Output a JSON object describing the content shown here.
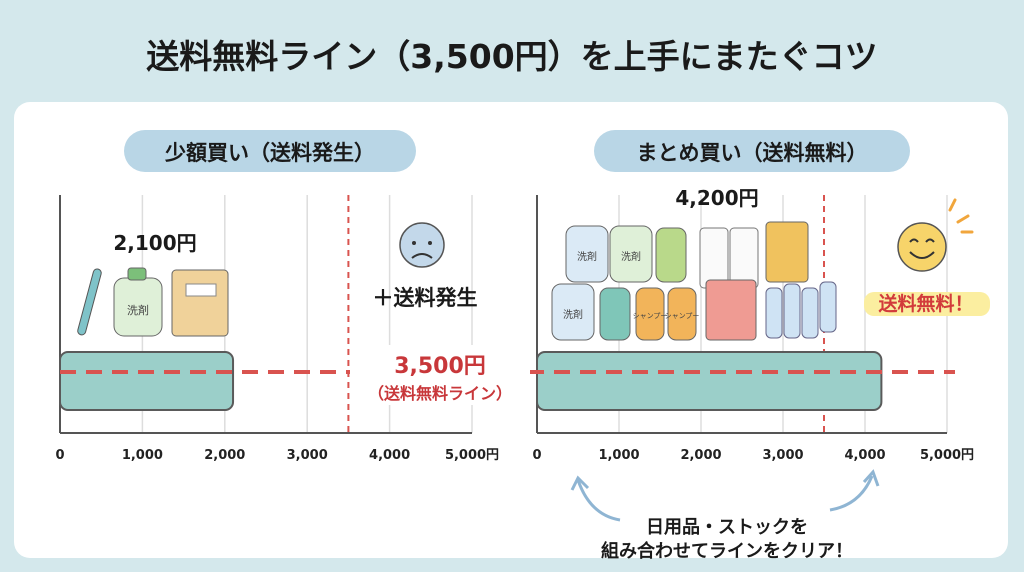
{
  "title": "送料無料ライン（3,500円）を上手にまたぐコツ",
  "colors": {
    "bar": "#9bcfc9",
    "bar_stroke": "#5a5a5a",
    "threshold": "#d9534f",
    "pill": "#b9d6e6",
    "background": "#d4e8ec",
    "highlight": "#fbeea0"
  },
  "threshold_label": {
    "value": "3,500円",
    "caption": "（送料無料ライン）"
  },
  "left_panel": {
    "heading": "少額買い（送料発生）",
    "total_label": "2,100円",
    "status_text": "＋送料発生",
    "face_icon": "sad-face-icon",
    "products": [
      {
        "icon": "toothbrush-icon"
      },
      {
        "icon": "detergent-bottle-icon",
        "label": "洗剤"
      },
      {
        "icon": "notebook-icon"
      }
    ]
  },
  "right_panel": {
    "heading": "まとめ買い（送料無料）",
    "total_label": "4,200円",
    "status_text": "送料無料！",
    "face_icon": "smiling-face-icon",
    "products": [
      {
        "icon": "detergent-bottle-icon",
        "label": "洗剤"
      },
      {
        "icon": "shampoo-bottle-icon",
        "label": "シャンプー"
      },
      {
        "icon": "toilet-paper-icon"
      },
      {
        "icon": "pet-food-bag-icon"
      },
      {
        "icon": "water-bottles-icon"
      }
    ],
    "tip_lines": [
      "日用品・ストックを",
      "組み合わせてラインをクリア！"
    ]
  },
  "chart_data": [
    {
      "type": "bar",
      "orientation": "horizontal",
      "categories": [
        "少額買い"
      ],
      "values": [
        2100
      ],
      "xlim": [
        0,
        5000
      ],
      "tick_labels": [
        "0",
        "1,000",
        "2,000",
        "3,000",
        "4,000",
        "5,000円"
      ],
      "threshold": 3500,
      "grid": true
    },
    {
      "type": "bar",
      "orientation": "horizontal",
      "categories": [
        "まとめ買い"
      ],
      "values": [
        4200
      ],
      "xlim": [
        0,
        5000
      ],
      "tick_labels": [
        "0",
        "1,000",
        "2,000",
        "3,000",
        "4,000",
        "5,000円"
      ],
      "threshold": 3500,
      "grid": true
    }
  ]
}
